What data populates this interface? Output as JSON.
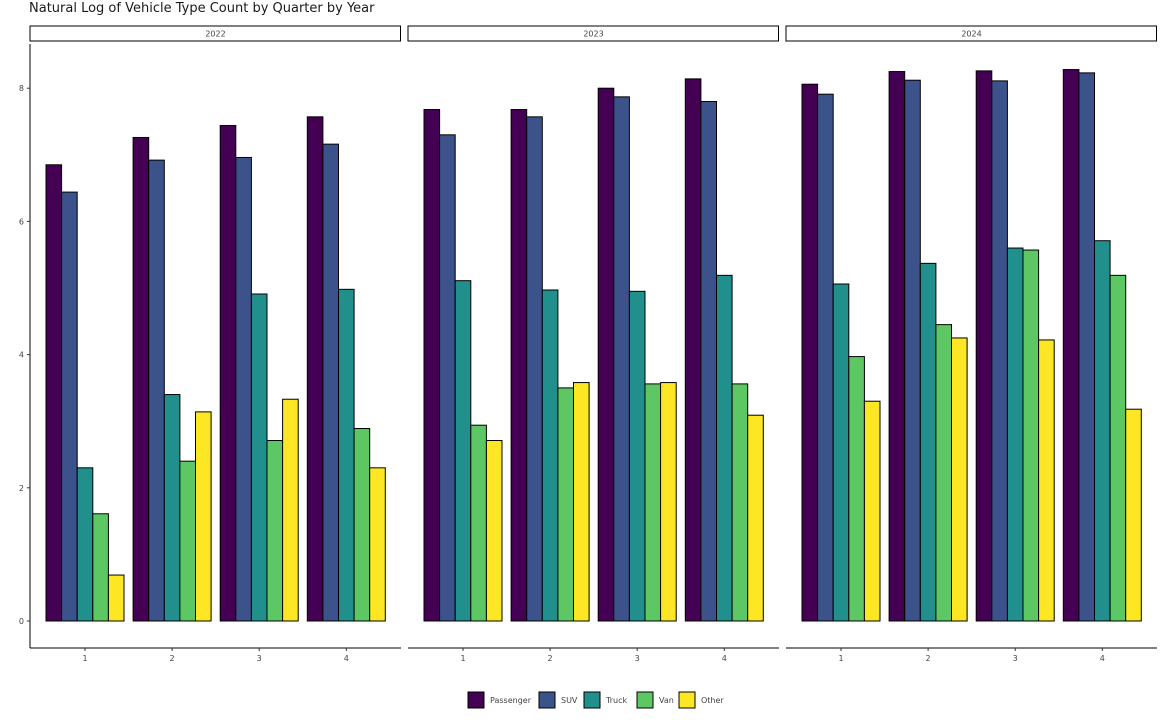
{
  "chart_data": {
    "type": "bar",
    "title": "Natural Log of Vehicle Type Count by Quarter by Year",
    "xlabel": "",
    "ylabel": "",
    "ylim": [
      0,
      8.6
    ],
    "yticks": [
      0,
      2,
      4,
      6,
      8
    ],
    "categories": [
      "1",
      "2",
      "3",
      "4"
    ],
    "grid": false,
    "legend_position": "bottom",
    "panels": [
      {
        "facet": "2022",
        "series": [
          {
            "name": "Passenger",
            "color": "#440154",
            "values": [
              6.85,
              7.26,
              7.44,
              7.57
            ]
          },
          {
            "name": "SUV",
            "color": "#3B528B",
            "values": [
              6.44,
              6.92,
              6.96,
              7.16
            ]
          },
          {
            "name": "Truck",
            "color": "#21908C",
            "values": [
              2.3,
              3.4,
              4.91,
              4.98
            ]
          },
          {
            "name": "Van",
            "color": "#5DC863",
            "values": [
              1.61,
              2.4,
              2.71,
              2.89
            ]
          },
          {
            "name": "Other",
            "color": "#FDE725",
            "values": [
              0.69,
              3.14,
              3.33,
              2.3
            ]
          }
        ]
      },
      {
        "facet": "2023",
        "series": [
          {
            "name": "Passenger",
            "color": "#440154",
            "values": [
              7.68,
              7.68,
              8.0,
              8.14
            ]
          },
          {
            "name": "SUV",
            "color": "#3B528B",
            "values": [
              7.3,
              7.57,
              7.87,
              7.8
            ]
          },
          {
            "name": "Truck",
            "color": "#21908C",
            "values": [
              5.11,
              4.97,
              4.95,
              5.19
            ]
          },
          {
            "name": "Van",
            "color": "#5DC863",
            "values": [
              2.94,
              3.5,
              3.56,
              3.56
            ]
          },
          {
            "name": "Other",
            "color": "#FDE725",
            "values": [
              2.71,
              3.58,
              3.58,
              3.09
            ]
          }
        ]
      },
      {
        "facet": "2024",
        "series": [
          {
            "name": "Passenger",
            "color": "#440154",
            "values": [
              8.06,
              8.25,
              8.26,
              8.28
            ]
          },
          {
            "name": "SUV",
            "color": "#3B528B",
            "values": [
              7.91,
              8.12,
              8.11,
              8.23
            ]
          },
          {
            "name": "Truck",
            "color": "#21908C",
            "values": [
              5.06,
              5.37,
              5.6,
              5.71
            ]
          },
          {
            "name": "Van",
            "color": "#5DC863",
            "values": [
              3.97,
              4.45,
              5.57,
              5.19
            ]
          },
          {
            "name": "Other",
            "color": "#FDE725",
            "values": [
              3.3,
              4.25,
              4.22,
              3.18
            ]
          }
        ]
      }
    ],
    "legend": [
      "Passenger",
      "SUV",
      "Truck",
      "Van",
      "Other"
    ]
  }
}
